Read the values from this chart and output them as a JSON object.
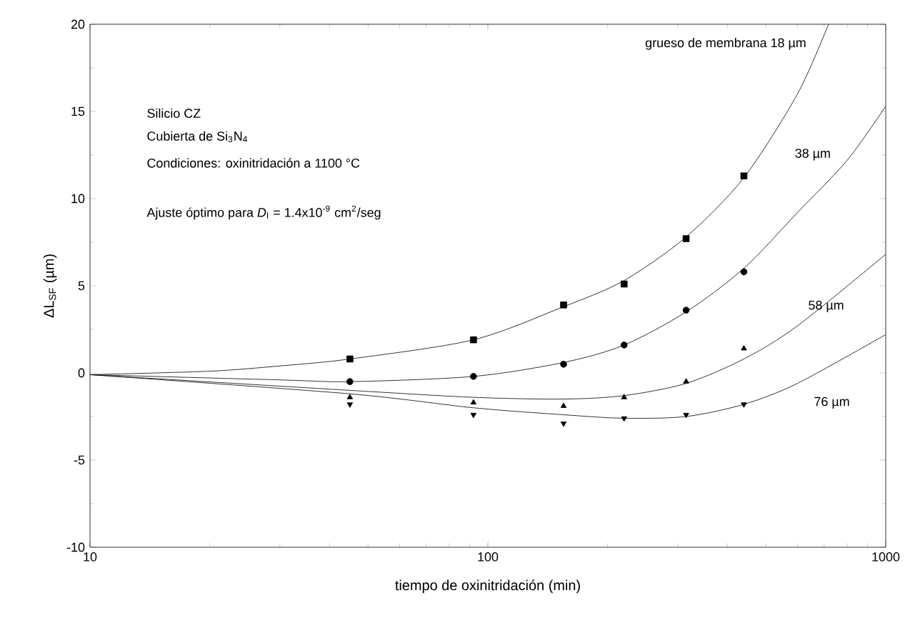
{
  "chart_data": {
    "type": "scatter",
    "xlabel": "tiempo de oxinitridación  (min)",
    "ylabel": "ΔL$_{SF}$  (µm)",
    "log": "x",
    "xlim": [
      10,
      1000
    ],
    "xticks": [
      10,
      100,
      1000
    ],
    "ylim": [
      -10,
      20
    ],
    "yticks": [
      -10,
      -5,
      0,
      5,
      10,
      15,
      20
    ],
    "grid": false,
    "legend": false,
    "series": [
      {
        "type": "line",
        "name": "grueso de membrana  18 µm",
        "color": "#000000",
        "marker": "none",
        "x": [
          10,
          20,
          30,
          45,
          92,
          155,
          220,
          315,
          440,
          600,
          718
        ],
        "values": [
          -0.1,
          0.1,
          0.4,
          0.8,
          1.9,
          3.8,
          5.3,
          7.8,
          11.2,
          16,
          20
        ]
      },
      {
        "type": "line",
        "name": "38 µm",
        "color": "#000000",
        "marker": "none",
        "x": [
          10,
          30,
          45,
          92,
          155,
          220,
          315,
          440,
          600,
          800,
          1000
        ],
        "values": [
          -0.1,
          -0.4,
          -0.5,
          -0.2,
          0.6,
          1.6,
          3.5,
          6,
          9.2,
          12.2,
          15.3
        ]
      },
      {
        "type": "line",
        "name": "58 µm",
        "color": "#000000",
        "marker": "none",
        "x": [
          10,
          45,
          92,
          155,
          220,
          315,
          440,
          600,
          1000
        ],
        "values": [
          -0.1,
          -1.0,
          -1.4,
          -1.5,
          -1.3,
          -0.6,
          0.8,
          2.7,
          6.8
        ]
      },
      {
        "type": "line",
        "name": "76 µm",
        "color": "#000000",
        "marker": "none",
        "x": [
          10,
          45,
          92,
          155,
          220,
          315,
          440,
          600,
          1000
        ],
        "values": [
          -0.1,
          -1.2,
          -2.0,
          -2.4,
          -2.6,
          -2.5,
          -1.8,
          -0.6,
          2.2
        ]
      },
      {
        "color": "#000000",
        "marker": "square",
        "x": [
          45,
          92,
          155,
          220,
          315,
          440
        ],
        "values": [
          0.8,
          1.9,
          3.9,
          5.1,
          7.7,
          11.3
        ]
      },
      {
        "color": "#000000",
        "marker": "circle",
        "x": [
          45,
          92,
          155,
          220,
          315,
          440
        ],
        "values": [
          -0.5,
          -0.2,
          0.5,
          1.6,
          3.6,
          5.8
        ]
      },
      {
        "color": "#000000",
        "marker": "triangle",
        "x": [
          45,
          92,
          155,
          220,
          315,
          440
        ],
        "values": [
          -1.4,
          -1.7,
          -1.9,
          -1.4,
          -0.5,
          1.4
        ]
      },
      {
        "color": "#000000",
        "marker": "triangle-down",
        "x": [
          45,
          92,
          155,
          220,
          315,
          440
        ],
        "values": [
          -1.8,
          -2.4,
          -2.9,
          -2.6,
          -2.4,
          -1.8
        ]
      }
    ],
    "annotations": [
      "Silicio CZ",
      "Cubierta de Si$_{3}$N$_{4}$",
      "Condiciones: oxinitridación a 1100 °C",
      "Ajuste óptimo para *D*$_{I}$ = 1.4x10$^{-9}$ cm$^{2}$/seg"
    ]
  }
}
